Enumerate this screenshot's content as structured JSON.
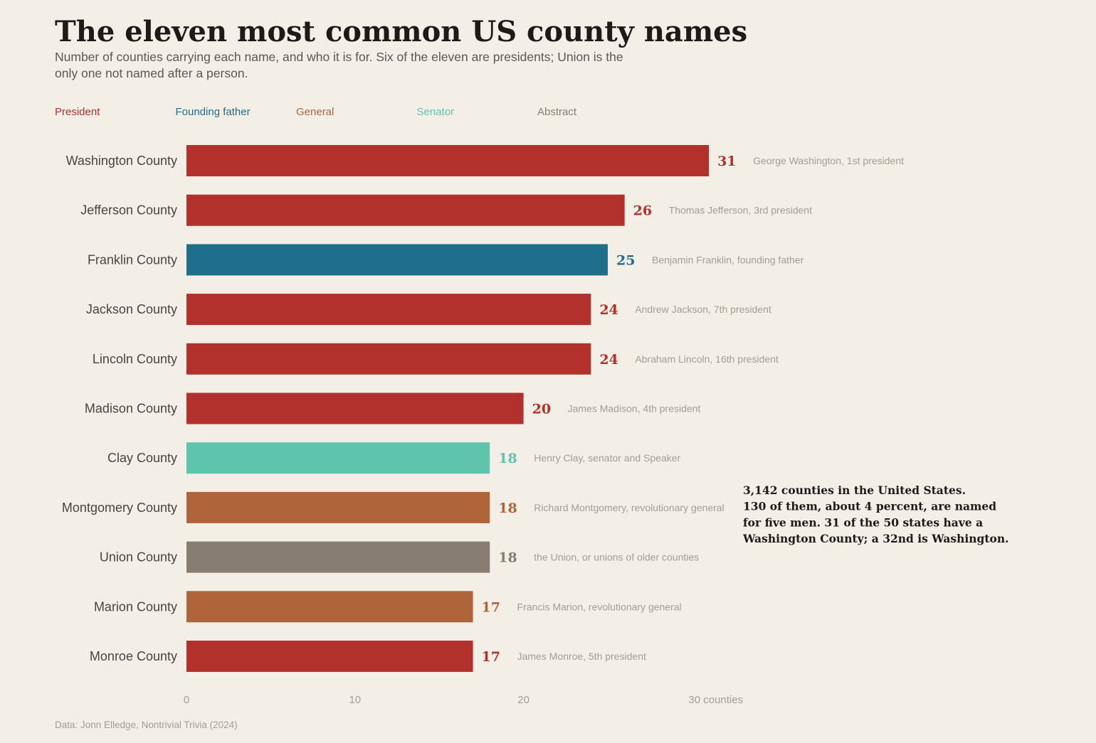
{
  "chart_data": {
    "type": "bar",
    "orientation": "horizontal",
    "title": "The eleven most common US county names",
    "subtitle": "Number of counties carrying each name, and who it is for. Six of the eleven are presidents; Union is the only one not named after a person.",
    "legend": [
      {
        "label": "President",
        "key": "president",
        "color": "#b3312c"
      },
      {
        "label": "Founding father",
        "key": "founding_father",
        "color": "#1f6e8c"
      },
      {
        "label": "General",
        "key": "general",
        "color": "#b0643a"
      },
      {
        "label": "Senator",
        "key": "senator",
        "color": "#5fc4ae"
      },
      {
        "label": "Abstract",
        "key": "abstract",
        "color": "#877d72"
      }
    ],
    "legend_placement": "top-left",
    "categories": [
      "Washington County",
      "Jefferson County",
      "Franklin County",
      "Jackson County",
      "Lincoln County",
      "Madison County",
      "Clay County",
      "Montgomery County",
      "Union County",
      "Marion County",
      "Monroe County"
    ],
    "values": [
      31,
      26,
      25,
      24,
      24,
      20,
      18,
      18,
      18,
      17,
      17
    ],
    "groups": [
      "president",
      "president",
      "founding_father",
      "president",
      "president",
      "president",
      "senator",
      "general",
      "abstract",
      "general",
      "president"
    ],
    "notes": [
      "George Washington, 1st president",
      "Thomas Jefferson, 3rd president",
      "Benjamin Franklin, founding father",
      "Andrew Jackson, 7th president",
      "Abraham Lincoln, 16th president",
      "James Madison, 4th president",
      "Henry Clay, senator and Speaker",
      "Richard Montgomery, revolutionary general",
      "the Union, or unions of older counties",
      "Francis Marion, revolutionary general",
      "James Monroe, 5th president"
    ],
    "xlim": [
      0,
      31
    ],
    "x_ticks": [
      {
        "value": 0,
        "label": "0"
      },
      {
        "value": 10,
        "label": "10"
      },
      {
        "value": 20,
        "label": "20"
      },
      {
        "value": 30,
        "label": "30 counties"
      }
    ],
    "grid": false,
    "annotation": [
      "3,142 counties in the United States.",
      "130 of them, about 4 percent, are named",
      "for five men. 31 of the 50 states have a",
      "Washington County; a 32nd is Washington."
    ],
    "source": "Data: Jonn Elledge, Nontrivial Trivia (2024)"
  }
}
